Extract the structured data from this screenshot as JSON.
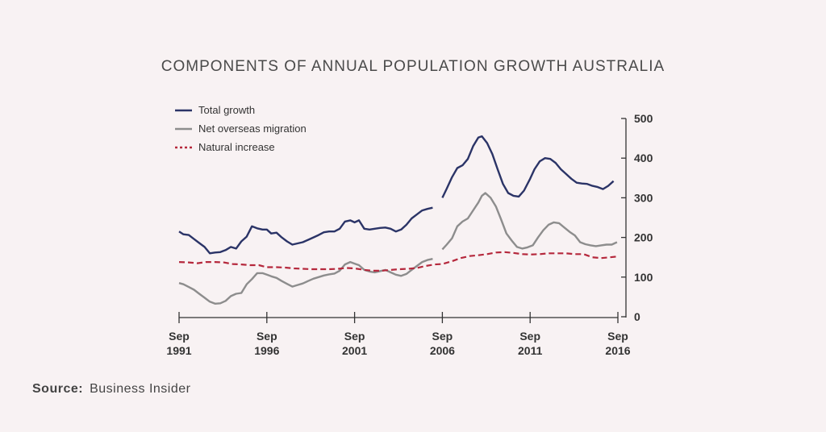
{
  "chart_data": {
    "type": "line",
    "title": "COMPONENTS OF ANNUAL POPULATION GROWTH AUSTRALIA",
    "xlabel": "",
    "ylabel": "",
    "x_ticks": [
      {
        "line1": "Sep",
        "line2": "1991",
        "x": 1991.75
      },
      {
        "line1": "Sep",
        "line2": "1996",
        "x": 1996.75
      },
      {
        "line1": "Sep",
        "line2": "2001",
        "x": 2001.75
      },
      {
        "line1": "Sep",
        "line2": "2006",
        "x": 2006.75
      },
      {
        "line1": "Sep",
        "line2": "2011",
        "x": 2011.75
      },
      {
        "line1": "Sep",
        "line2": "2016",
        "x": 2016.75
      }
    ],
    "xlim": [
      1991.75,
      2016.75
    ],
    "ylim": [
      0,
      500
    ],
    "y_ticks": [
      0,
      100,
      200,
      300,
      400,
      500
    ],
    "y_axis_side": "right",
    "grid": false,
    "legend_position": "top-left",
    "series": [
      {
        "name": "Total growth",
        "color": "#2b3467",
        "style": "solid",
        "segments": [
          [
            [
              1991.75,
              215
            ],
            [
              1992.0,
              208
            ],
            [
              1992.3,
              206
            ],
            [
              1992.6,
              196
            ],
            [
              1992.9,
              186
            ],
            [
              1993.2,
              176
            ],
            [
              1993.5,
              160
            ],
            [
              1993.8,
              162
            ],
            [
              1994.1,
              163
            ],
            [
              1994.4,
              168
            ],
            [
              1994.7,
              176
            ],
            [
              1995.0,
              172
            ],
            [
              1995.3,
              190
            ],
            [
              1995.6,
              202
            ],
            [
              1995.9,
              228
            ],
            [
              1996.2,
              223
            ],
            [
              1996.5,
              220
            ],
            [
              1996.75,
              220
            ],
            [
              1997.0,
              210
            ],
            [
              1997.3,
              212
            ],
            [
              1997.6,
              200
            ],
            [
              1997.9,
              190
            ],
            [
              1998.2,
              182
            ],
            [
              1998.5,
              185
            ],
            [
              1998.8,
              188
            ],
            [
              1999.1,
              194
            ],
            [
              1999.4,
              200
            ],
            [
              1999.7,
              206
            ],
            [
              2000.0,
              213
            ],
            [
              2000.3,
              215
            ],
            [
              2000.6,
              215
            ],
            [
              2000.9,
              222
            ],
            [
              2001.2,
              240
            ],
            [
              2001.5,
              243
            ],
            [
              2001.75,
              238
            ],
            [
              2002.0,
              243
            ],
            [
              2002.3,
              222
            ],
            [
              2002.6,
              220
            ],
            [
              2002.9,
              222
            ],
            [
              2003.2,
              224
            ],
            [
              2003.5,
              225
            ],
            [
              2003.8,
              222
            ],
            [
              2004.1,
              215
            ],
            [
              2004.4,
              220
            ],
            [
              2004.7,
              232
            ],
            [
              2005.0,
              248
            ],
            [
              2005.3,
              258
            ],
            [
              2005.6,
              268
            ],
            [
              2005.9,
              272
            ],
            [
              2006.2,
              275
            ]
          ],
          [
            [
              2006.75,
              300
            ],
            [
              2007.0,
              323
            ],
            [
              2007.3,
              352
            ],
            [
              2007.6,
              375
            ],
            [
              2007.9,
              382
            ],
            [
              2008.2,
              398
            ],
            [
              2008.5,
              430
            ],
            [
              2008.8,
              452
            ],
            [
              2009.0,
              455
            ],
            [
              2009.3,
              438
            ],
            [
              2009.6,
              410
            ],
            [
              2009.9,
              372
            ],
            [
              2010.2,
              335
            ],
            [
              2010.5,
              312
            ],
            [
              2010.8,
              305
            ],
            [
              2011.1,
              303
            ],
            [
              2011.4,
              318
            ],
            [
              2011.75,
              348
            ],
            [
              2012.0,
              372
            ],
            [
              2012.3,
              392
            ],
            [
              2012.6,
              400
            ],
            [
              2012.9,
              398
            ],
            [
              2013.2,
              388
            ],
            [
              2013.5,
              372
            ],
            [
              2013.8,
              360
            ],
            [
              2014.1,
              348
            ],
            [
              2014.4,
              338
            ],
            [
              2014.7,
              336
            ],
            [
              2015.0,
              335
            ],
            [
              2015.3,
              330
            ],
            [
              2015.6,
              327
            ],
            [
              2015.9,
              322
            ],
            [
              2016.2,
              330
            ],
            [
              2016.5,
              342
            ]
          ]
        ]
      },
      {
        "name": "Net overseas migration",
        "color": "#8d8d8d",
        "style": "solid",
        "segments": [
          [
            [
              1991.75,
              85
            ],
            [
              1992.0,
              82
            ],
            [
              1992.3,
              75
            ],
            [
              1992.6,
              68
            ],
            [
              1992.9,
              58
            ],
            [
              1993.2,
              48
            ],
            [
              1993.5,
              38
            ],
            [
              1993.8,
              33
            ],
            [
              1994.1,
              34
            ],
            [
              1994.4,
              40
            ],
            [
              1994.7,
              52
            ],
            [
              1995.0,
              58
            ],
            [
              1995.3,
              60
            ],
            [
              1995.6,
              82
            ],
            [
              1995.9,
              95
            ],
            [
              1996.2,
              110
            ],
            [
              1996.5,
              110
            ],
            [
              1996.75,
              106
            ],
            [
              1997.0,
              102
            ],
            [
              1997.3,
              98
            ],
            [
              1997.6,
              90
            ],
            [
              1997.9,
              83
            ],
            [
              1998.2,
              76
            ],
            [
              1998.5,
              80
            ],
            [
              1998.8,
              84
            ],
            [
              1999.1,
              90
            ],
            [
              1999.4,
              96
            ],
            [
              1999.7,
              100
            ],
            [
              2000.0,
              104
            ],
            [
              2000.3,
              107
            ],
            [
              2000.6,
              109
            ],
            [
              2000.9,
              116
            ],
            [
              2001.2,
              132
            ],
            [
              2001.5,
              138
            ],
            [
              2001.75,
              134
            ],
            [
              2002.0,
              130
            ],
            [
              2002.3,
              118
            ],
            [
              2002.6,
              114
            ],
            [
              2002.9,
              112
            ],
            [
              2003.2,
              115
            ],
            [
              2003.5,
              118
            ],
            [
              2003.8,
              112
            ],
            [
              2004.1,
              106
            ],
            [
              2004.4,
              103
            ],
            [
              2004.7,
              108
            ],
            [
              2005.0,
              118
            ],
            [
              2005.3,
              128
            ],
            [
              2005.6,
              138
            ],
            [
              2005.9,
              143
            ],
            [
              2006.2,
              146
            ]
          ],
          [
            [
              2006.75,
              170
            ],
            [
              2007.0,
              182
            ],
            [
              2007.3,
              198
            ],
            [
              2007.6,
              228
            ],
            [
              2007.9,
              240
            ],
            [
              2008.2,
              248
            ],
            [
              2008.5,
              268
            ],
            [
              2008.8,
              288
            ],
            [
              2009.0,
              305
            ],
            [
              2009.2,
              312
            ],
            [
              2009.5,
              300
            ],
            [
              2009.8,
              278
            ],
            [
              2010.1,
              245
            ],
            [
              2010.4,
              210
            ],
            [
              2010.7,
              192
            ],
            [
              2011.0,
              176
            ],
            [
              2011.3,
              172
            ],
            [
              2011.6,
              175
            ],
            [
              2011.9,
              180
            ],
            [
              2012.2,
              200
            ],
            [
              2012.5,
              218
            ],
            [
              2012.8,
              232
            ],
            [
              2013.1,
              238
            ],
            [
              2013.4,
              236
            ],
            [
              2013.7,
              225
            ],
            [
              2014.0,
              214
            ],
            [
              2014.3,
              205
            ],
            [
              2014.6,
              188
            ],
            [
              2014.9,
              183
            ],
            [
              2015.2,
              180
            ],
            [
              2015.5,
              178
            ],
            [
              2015.8,
              180
            ],
            [
              2016.1,
              182
            ],
            [
              2016.4,
              182
            ],
            [
              2016.7,
              188
            ]
          ]
        ]
      },
      {
        "name": "Natural increase",
        "color": "#b5283c",
        "style": "dashed",
        "segments": [
          [
            [
              1991.75,
              138
            ],
            [
              1992.3,
              137
            ],
            [
              1992.8,
              135
            ],
            [
              1993.3,
              138
            ],
            [
              1993.8,
              138
            ],
            [
              1994.3,
              137
            ],
            [
              1994.8,
              133
            ],
            [
              1995.3,
              132
            ],
            [
              1995.8,
              130
            ],
            [
              1996.3,
              130
            ],
            [
              1996.75,
              125
            ],
            [
              1997.3,
              125
            ],
            [
              1997.8,
              124
            ],
            [
              1998.3,
              122
            ],
            [
              1998.8,
              121
            ],
            [
              1999.3,
              120
            ],
            [
              1999.8,
              120
            ],
            [
              2000.3,
              120
            ],
            [
              2000.8,
              121
            ],
            [
              2001.3,
              123
            ],
            [
              2001.75,
              122
            ],
            [
              2002.3,
              118
            ],
            [
              2002.8,
              116
            ],
            [
              2003.3,
              116
            ],
            [
              2003.8,
              118
            ],
            [
              2004.3,
              120
            ],
            [
              2004.8,
              121
            ],
            [
              2005.3,
              123
            ],
            [
              2005.8,
              128
            ],
            [
              2006.3,
              132
            ],
            [
              2006.75,
              133
            ],
            [
              2007.3,
              140
            ],
            [
              2007.8,
              148
            ],
            [
              2008.3,
              153
            ],
            [
              2008.8,
              155
            ],
            [
              2009.3,
              158
            ],
            [
              2009.8,
              162
            ],
            [
              2010.3,
              163
            ],
            [
              2010.8,
              161
            ],
            [
              2011.3,
              158
            ],
            [
              2011.75,
              157
            ],
            [
              2012.3,
              158
            ],
            [
              2012.8,
              160
            ],
            [
              2013.3,
              160
            ],
            [
              2013.8,
              160
            ],
            [
              2014.3,
              158
            ],
            [
              2014.8,
              158
            ],
            [
              2015.3,
              150
            ],
            [
              2015.8,
              148
            ],
            [
              2016.3,
              150
            ],
            [
              2016.75,
              152
            ]
          ]
        ]
      }
    ]
  },
  "source": {
    "label": "Source:",
    "text": "Business Insider"
  }
}
